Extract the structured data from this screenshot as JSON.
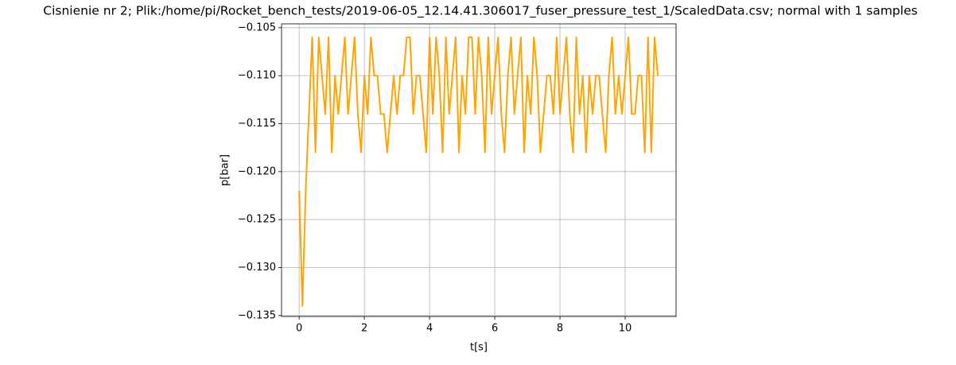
{
  "chart_data": {
    "type": "line",
    "title": "Cisnienie nr 2; Plik:/home/pi/Rocket_bench_tests/2019-06-05_12.14.41.306017_fuser_pressure_test_1/ScaledData.csv; normal with 1 samples",
    "xlabel": "t[s]",
    "ylabel": "p[bar]",
    "color": "#ffa500",
    "grid": true,
    "x": [
      0.0,
      0.1,
      0.2,
      0.3,
      0.4,
      0.5,
      0.6,
      0.7,
      0.8,
      0.9,
      1.0,
      1.1,
      1.2,
      1.3,
      1.4,
      1.5,
      1.6,
      1.7,
      1.8,
      1.9,
      2.0,
      2.1,
      2.2,
      2.3,
      2.4,
      2.5,
      2.6,
      2.7,
      2.8,
      2.9,
      3.0,
      3.1,
      3.2,
      3.3,
      3.4,
      3.5,
      3.6,
      3.7,
      3.8,
      3.9,
      4.0,
      4.1,
      4.2,
      4.3,
      4.4,
      4.5,
      4.6,
      4.7,
      4.8,
      4.9,
      5.0,
      5.1,
      5.2,
      5.3,
      5.4,
      5.5,
      5.6,
      5.7,
      5.8,
      5.9,
      6.0,
      6.1,
      6.2,
      6.3,
      6.4,
      6.5,
      6.6,
      6.7,
      6.8,
      6.9,
      7.0,
      7.1,
      7.2,
      7.3,
      7.4,
      7.5,
      7.6,
      7.7,
      7.8,
      7.9,
      8.0,
      8.1,
      8.2,
      8.3,
      8.4,
      8.5,
      8.6,
      8.7,
      8.8,
      8.9,
      9.0,
      9.1,
      9.2,
      9.3,
      9.4,
      9.5,
      9.6,
      9.7,
      9.8,
      9.9,
      10.0,
      10.1,
      10.2,
      10.3,
      10.4,
      10.5,
      10.6,
      10.7,
      10.8,
      10.9,
      11.0
    ],
    "values": [
      -0.122,
      -0.134,
      -0.122,
      -0.114,
      -0.106,
      -0.118,
      -0.106,
      -0.11,
      -0.114,
      -0.106,
      -0.118,
      -0.11,
      -0.114,
      -0.11,
      -0.106,
      -0.114,
      -0.11,
      -0.106,
      -0.114,
      -0.118,
      -0.11,
      -0.114,
      -0.106,
      -0.11,
      -0.11,
      -0.114,
      -0.114,
      -0.118,
      -0.114,
      -0.11,
      -0.114,
      -0.11,
      -0.11,
      -0.106,
      -0.106,
      -0.114,
      -0.11,
      -0.11,
      -0.114,
      -0.118,
      -0.106,
      -0.114,
      -0.106,
      -0.11,
      -0.118,
      -0.106,
      -0.114,
      -0.11,
      -0.106,
      -0.118,
      -0.11,
      -0.114,
      -0.106,
      -0.106,
      -0.114,
      -0.106,
      -0.11,
      -0.118,
      -0.106,
      -0.114,
      -0.11,
      -0.106,
      -0.114,
      -0.118,
      -0.11,
      -0.106,
      -0.114,
      -0.11,
      -0.106,
      -0.118,
      -0.11,
      -0.114,
      -0.106,
      -0.11,
      -0.118,
      -0.114,
      -0.11,
      -0.11,
      -0.114,
      -0.106,
      -0.114,
      -0.11,
      -0.106,
      -0.114,
      -0.118,
      -0.106,
      -0.114,
      -0.11,
      -0.118,
      -0.11,
      -0.114,
      -0.11,
      -0.11,
      -0.114,
      -0.118,
      -0.11,
      -0.106,
      -0.114,
      -0.11,
      -0.114,
      -0.11,
      -0.106,
      -0.114,
      -0.114,
      -0.11,
      -0.11,
      -0.118,
      -0.106,
      -0.118,
      -0.106,
      -0.11
    ],
    "xlim": [
      -0.54,
      11.56
    ],
    "xticks": [
      0,
      2,
      4,
      6,
      8,
      10
    ],
    "ylim": [
      -0.1351,
      -0.1046
    ],
    "yticks": [
      {
        "value": -0.135,
        "label": "−0.135"
      },
      {
        "value": -0.13,
        "label": "−0.130"
      },
      {
        "value": -0.125,
        "label": "−0.125"
      },
      {
        "value": -0.12,
        "label": "−0.120"
      },
      {
        "value": -0.115,
        "label": "−0.115"
      },
      {
        "value": -0.11,
        "label": "−0.110"
      },
      {
        "value": -0.105,
        "label": "−0.105"
      }
    ]
  }
}
